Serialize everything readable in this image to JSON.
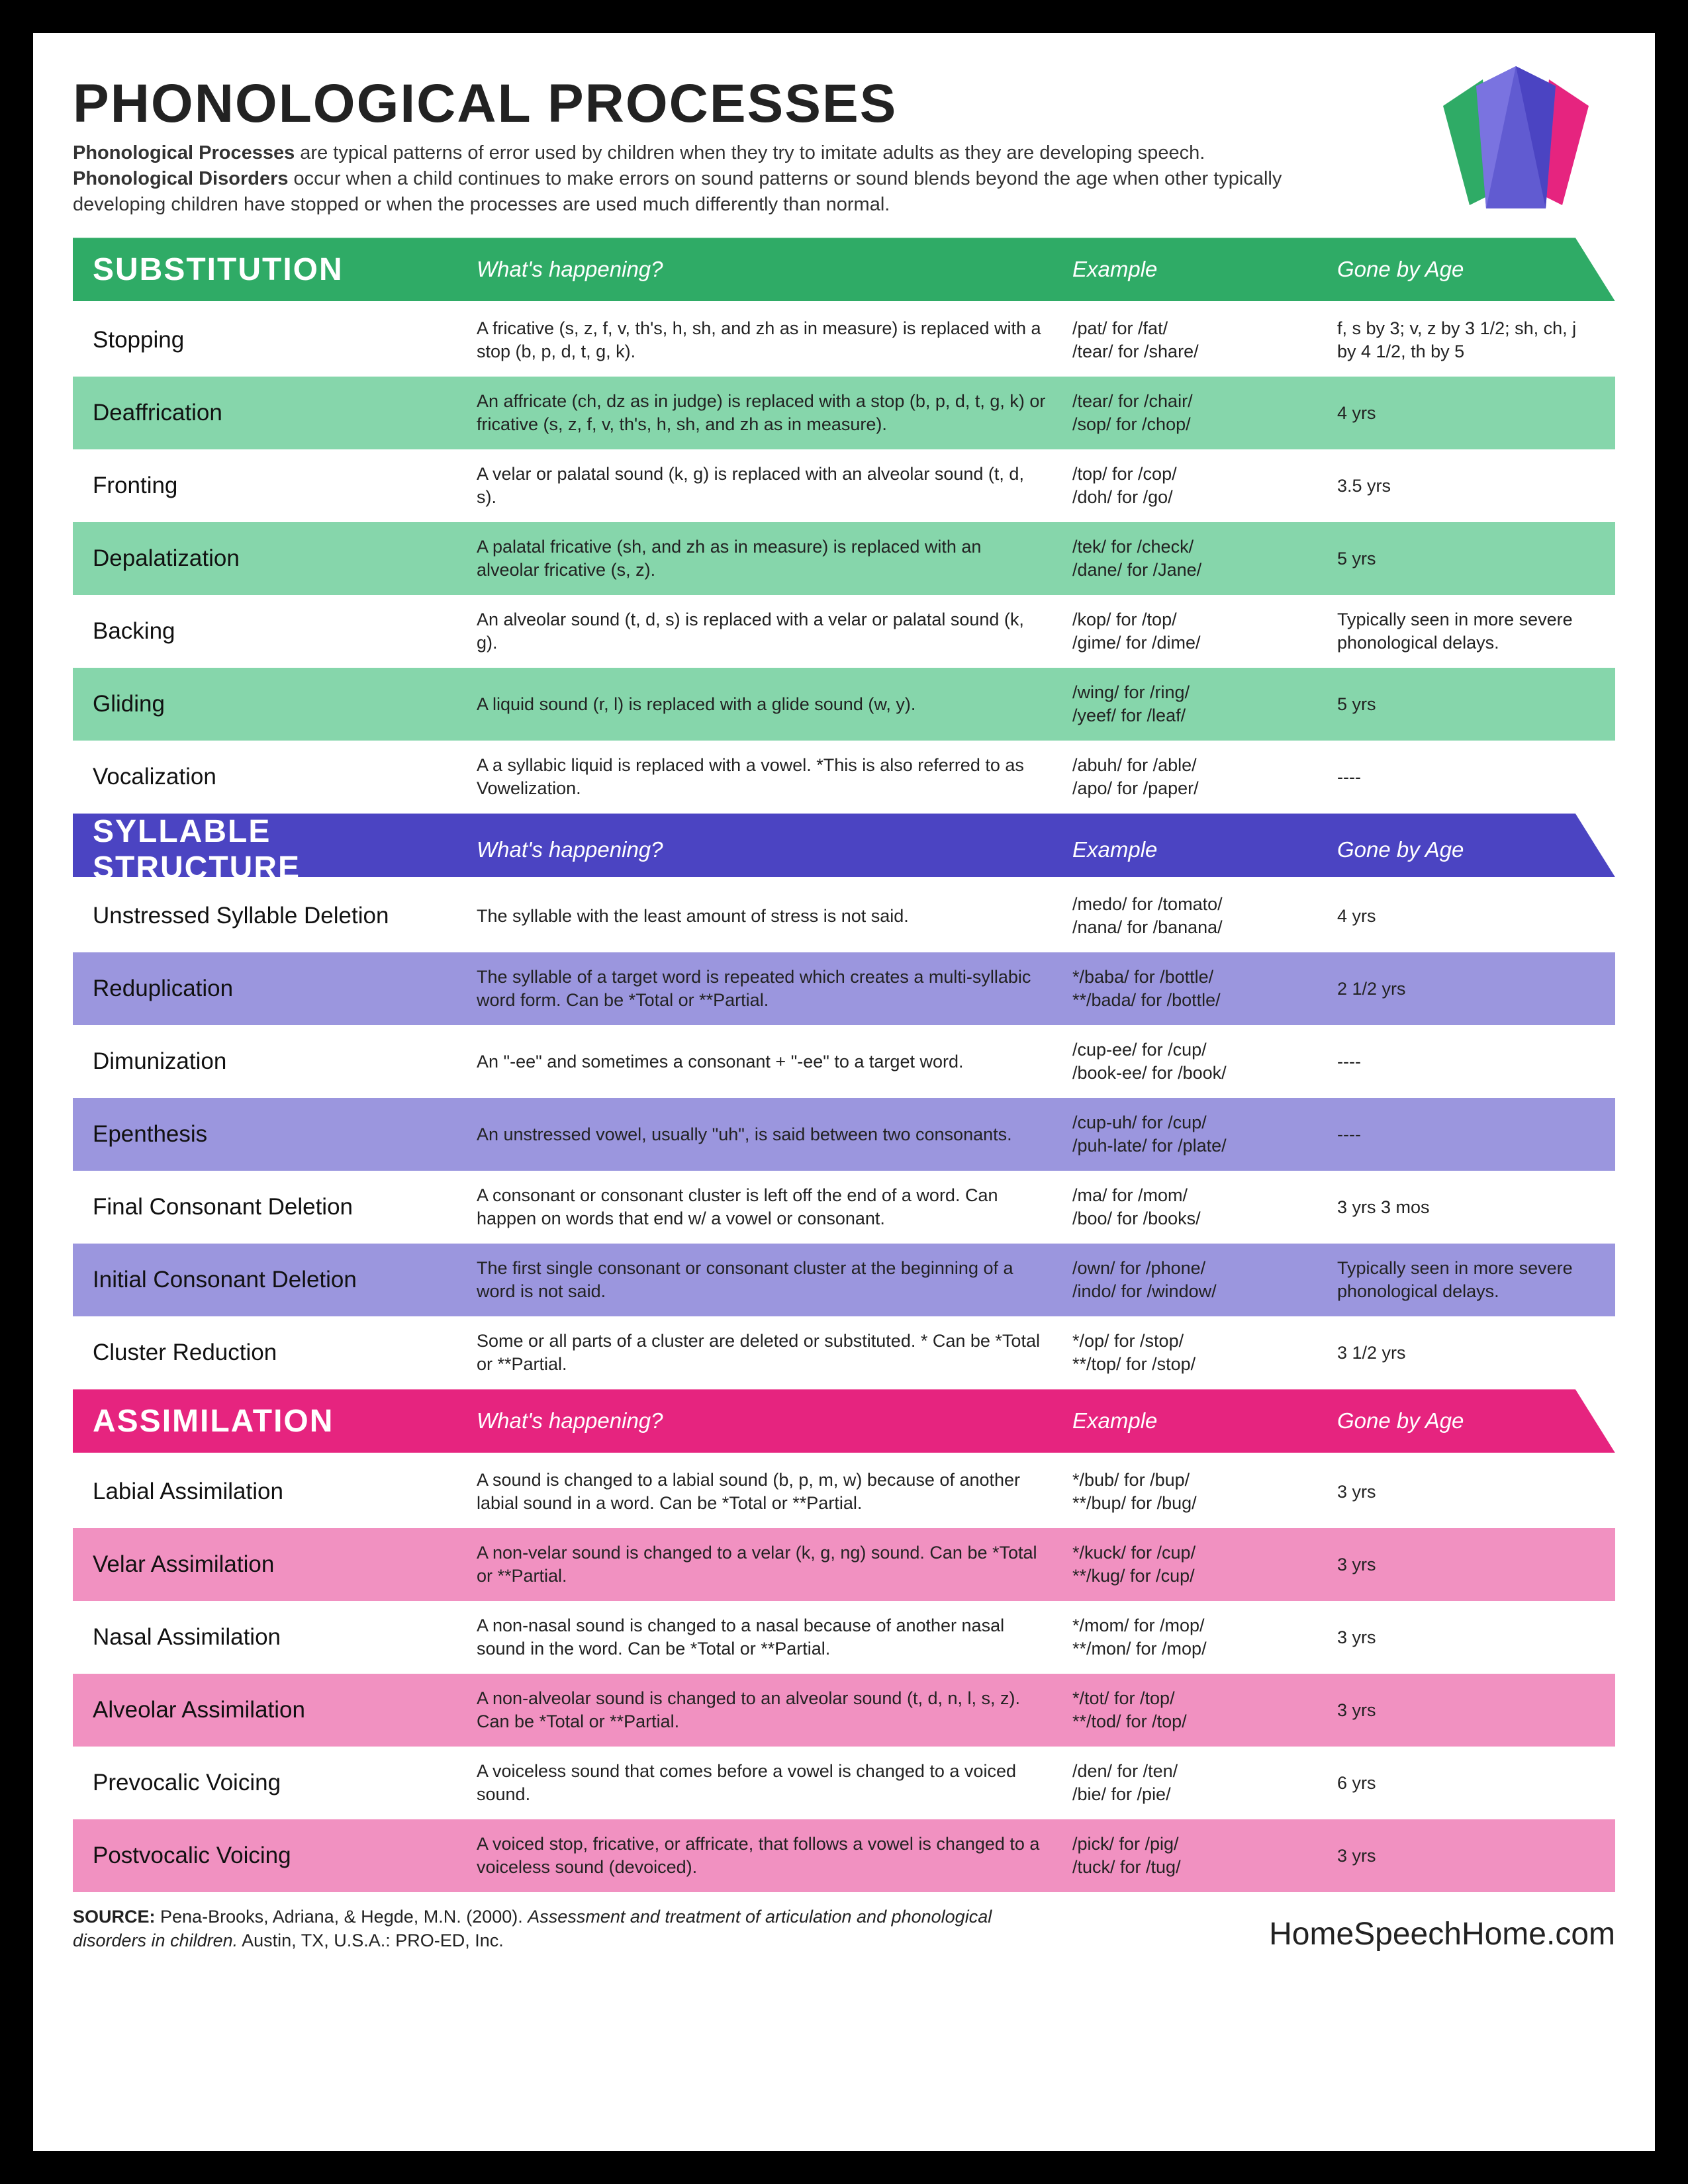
{
  "title": "PHONOLOGICAL PROCESSES",
  "intro_html": "<b>Phonological Processes</b> are typical patterns of error used by children when they try to imitate adults as they are developing speech. <b>Phonological Disorders</b> occur when a child continues to make errors on sound patterns or sound blends beyond the age when other typically developing children have stopped or when the processes are used much differently than normal.",
  "columns": {
    "c1": "What's happening?",
    "c2": "Example",
    "c3": "Gone by Age"
  },
  "colors": {
    "green_header": "#2fab66",
    "green_alt": "#86d6ab",
    "purple_header": "#4b44c2",
    "purple_alt": "#9b96de",
    "pink_header": "#e6247f",
    "pink_alt": "#f191c1",
    "white": "#ffffff"
  },
  "sections": [
    {
      "title": "SUBSTITUTION",
      "header_color": "#2fab66",
      "alt_color": "#86d6ab",
      "rows": [
        {
          "name": "Stopping",
          "desc": "A fricative (s, z, f, v, th's, h, sh, and zh as in measure) is replaced with a stop (b, p, d, t, g, k).",
          "example": "/pat/ for /fat/\n/tear/ for /share/",
          "age": "f, s by 3; v, z by 3 1/2; sh, ch, j by 4 1/2, th by 5"
        },
        {
          "name": "Deaffrication",
          "desc": "An affricate (ch, dz as in judge) is replaced with a stop (b, p, d, t, g, k) or fricative (s, z, f, v, th's, h, sh, and zh as in measure).",
          "example": "/tear/ for /chair/\n/sop/ for /chop/",
          "age": "4 yrs"
        },
        {
          "name": "Fronting",
          "desc": "A velar or palatal sound (k, g) is replaced with an alveolar sound (t, d, s).",
          "example": "/top/ for /cop/\n/doh/ for /go/",
          "age": "3.5 yrs"
        },
        {
          "name": "Depalatization",
          "desc": "A palatal fricative (sh, and zh as in measure) is replaced with an alveolar fricative (s, z).",
          "example": "/tek/ for /check/\n/dane/ for /Jane/",
          "age": "5 yrs"
        },
        {
          "name": "Backing",
          "desc": "An alveolar sound (t, d, s) is replaced with a velar or palatal sound (k, g).",
          "example": "/kop/ for /top/\n/gime/ for /dime/",
          "age": "Typically seen in more severe phonological delays."
        },
        {
          "name": "Gliding",
          "desc": "A liquid sound (r, l) is replaced with a glide sound (w, y).",
          "example": "/wing/ for /ring/\n/yeef/ for /leaf/",
          "age": "5 yrs"
        },
        {
          "name": "Vocalization",
          "desc": "A a syllabic liquid is replaced with a vowel. *This is also referred to as Vowelization.",
          "example": "/abuh/ for /able/\n/apo/ for /paper/",
          "age": "----"
        }
      ]
    },
    {
      "title": "SYLLABLE STRUCTURE",
      "header_color": "#4b44c2",
      "alt_color": "#9b96de",
      "rows": [
        {
          "name": "Unstressed Syllable Deletion",
          "desc": "The syllable with the least amount of stress is not said.",
          "example": "/medo/ for /tomato/\n/nana/ for /banana/",
          "age": "4 yrs"
        },
        {
          "name": "Reduplication",
          "desc": "The syllable of a target word is repeated which creates a multi-syllabic word form. Can be *Total or **Partial.",
          "example": "*/baba/ for /bottle/\n**/bada/ for /bottle/",
          "age": "2 1/2 yrs"
        },
        {
          "name": "Dimunization",
          "desc": "An \"-ee\" and sometimes a consonant + \"-ee\" to a target word.",
          "example": "/cup-ee/ for /cup/\n/book-ee/ for /book/",
          "age": "----"
        },
        {
          "name": "Epenthesis",
          "desc": "An unstressed vowel, usually \"uh\", is said between two consonants.",
          "example": "/cup-uh/ for /cup/\n/puh-late/ for /plate/",
          "age": "----"
        },
        {
          "name": "Final Consonant Deletion",
          "desc": "A consonant or consonant cluster is left off the end of a word. Can happen on words that end w/ a vowel or consonant.",
          "example": "/ma/ for /mom/\n/boo/ for /books/",
          "age": "3 yrs 3 mos"
        },
        {
          "name": "Initial Consonant Deletion",
          "desc": "The first single consonant or consonant cluster at the beginning of a word is not said.",
          "example": "/own/ for /phone/\n/indo/ for /window/",
          "age": "Typically seen in more severe phonological delays."
        },
        {
          "name": "Cluster Reduction",
          "desc": "Some or all parts of a cluster are deleted or substituted. * Can be *Total or **Partial.",
          "example": "*/op/ for /stop/\n**/top/ for /stop/",
          "age": "3 1/2 yrs"
        }
      ]
    },
    {
      "title": "ASSIMILATION",
      "header_color": "#e6247f",
      "alt_color": "#f191c1",
      "rows": [
        {
          "name": "Labial Assimilation",
          "desc": "A sound is changed to a labial sound (b, p, m, w) because of another labial sound in a word. Can be *Total or **Partial.",
          "example": "*/bub/ for /bup/\n**/bup/ for /bug/",
          "age": "3 yrs"
        },
        {
          "name": "Velar Assimilation",
          "desc": "A non-velar sound is changed to a velar (k, g, ng) sound. Can be *Total or **Partial.",
          "example": "*/kuck/ for /cup/\n**/kug/ for /cup/",
          "age": "3 yrs"
        },
        {
          "name": "Nasal Assimilation",
          "desc": "A non-nasal sound is changed to a nasal because of another nasal sound in the word. Can be *Total or **Partial.",
          "example": "*/mom/ for /mop/\n**/mon/ for /mop/",
          "age": "3 yrs"
        },
        {
          "name": "Alveolar Assimilation",
          "desc": "A non-alveolar sound is changed to an alveolar sound (t, d, n, l, s, z). Can be *Total or **Partial.",
          "example": "*/tot/ for /top/\n**/tod/ for /top/",
          "age": "3 yrs"
        },
        {
          "name": "Prevocalic Voicing",
          "desc": "A voiceless sound that comes before a vowel is changed to a voiced sound.",
          "example": "/den/ for /ten/\n/bie/ for /pie/",
          "age": "6 yrs"
        },
        {
          "name": "Postvocalic Voicing",
          "desc": "A voiced stop, fricative, or affricate, that follows a vowel is changed to a  voiceless sound (devoiced).",
          "example": "/pick/ for /pig/\n/tuck/ for /tug/",
          "age": "3 yrs"
        }
      ]
    }
  ],
  "source_html": "<b>SOURCE:</b> Pena-Brooks, Adriana, & Hegde, M.N. (2000). <i>Assessment and treatment of articulation and phonological disorders in children.</i> Austin, TX, U.S.A.: PRO-ED, Inc.",
  "site": "HomeSpeechHome.com"
}
